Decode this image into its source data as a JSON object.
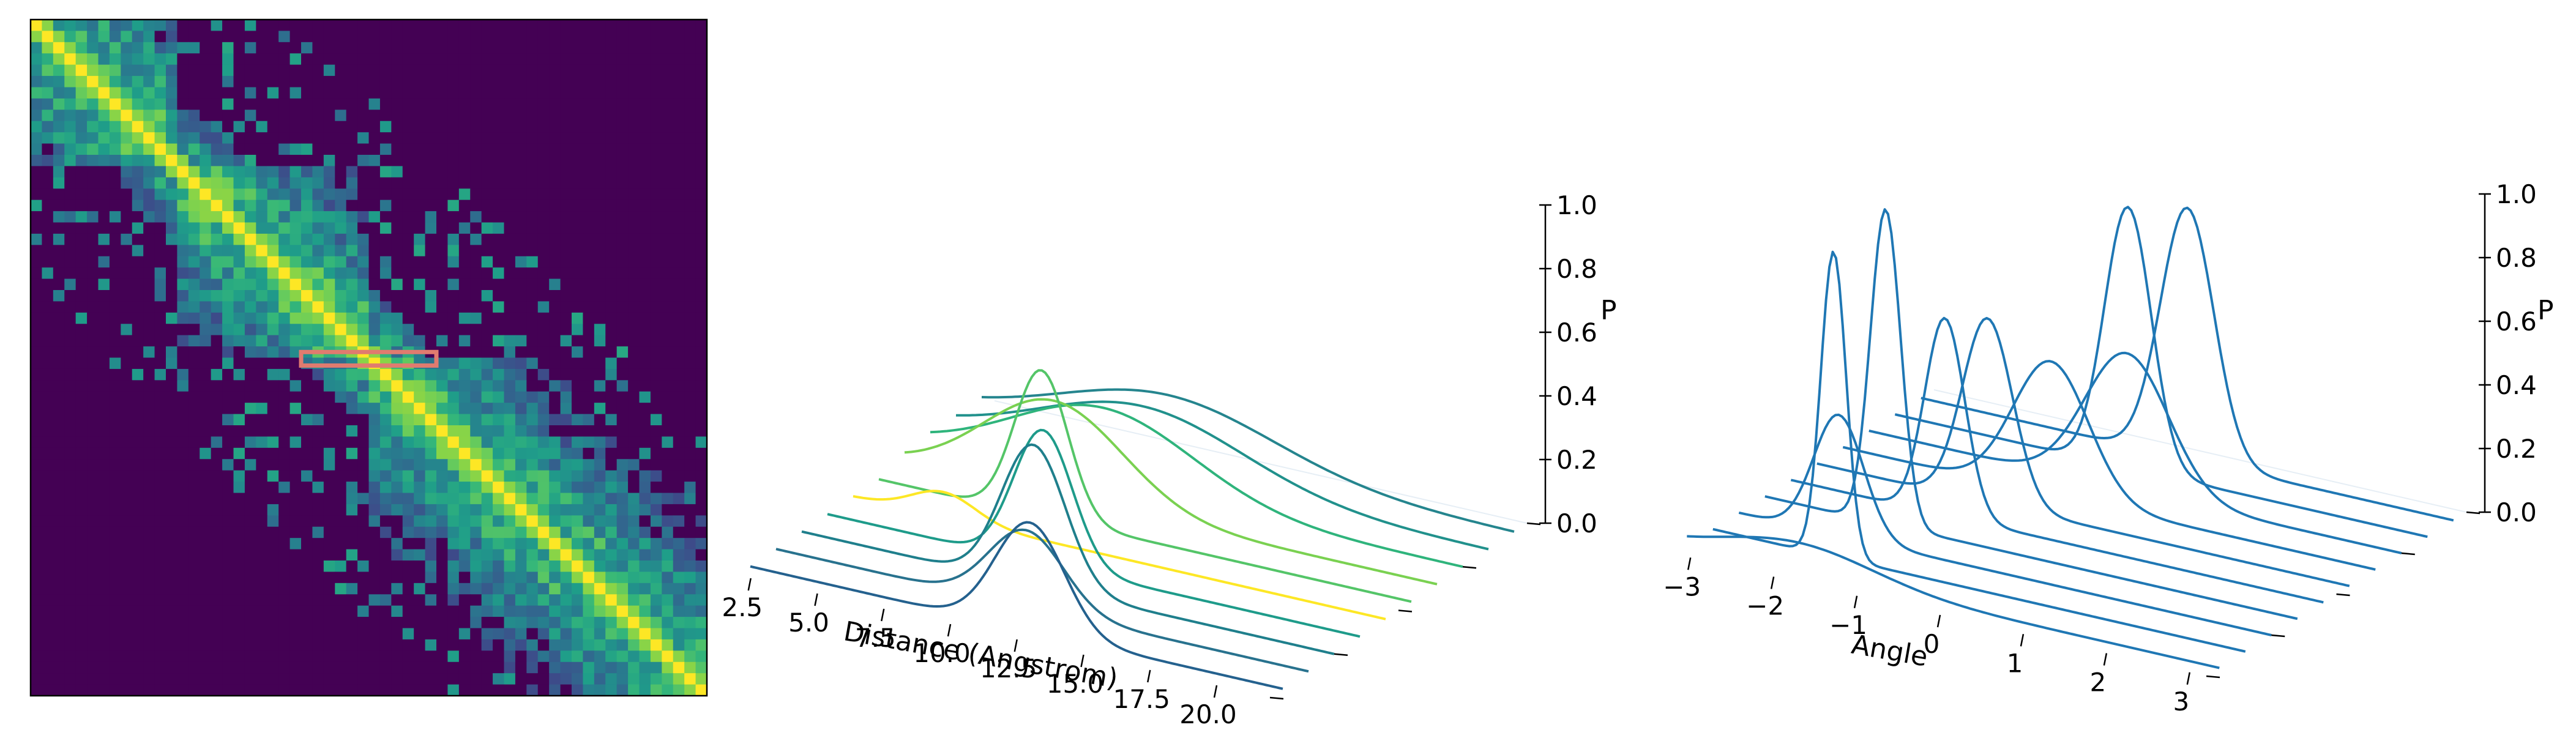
{
  "chart_data": [
    {
      "type": "heatmap",
      "colormap": "viridis",
      "highlight_color": "#e07b6f",
      "rows": 60,
      "cols": 60,
      "highlight": {
        "row": 30,
        "col_start": 24,
        "col_end": 36
      }
    },
    {
      "type": "line",
      "projection": "3d",
      "xlabel": "Distance (Angstrom)",
      "zlabel": "P",
      "x_ticks": [
        "2.5",
        "5.0",
        "7.5",
        "10.0",
        "12.5",
        "15.0",
        "17.5",
        "20.0"
      ],
      "z_ticks": [
        "0.0",
        "0.2",
        "0.4",
        "0.6",
        "0.8",
        "1.0"
      ],
      "xlim": [
        2,
        22
      ],
      "zlim": [
        0,
        1
      ],
      "series": [
        {
          "color": "#24618e",
          "peaks": [
            [
              12.5,
              0.34,
              1.3
            ]
          ]
        },
        {
          "color": "#28728e",
          "peaks": [
            [
              11.4,
              0.24,
              1.4
            ]
          ]
        },
        {
          "color": "#1f7f8c",
          "peaks": [
            [
              10.7,
              0.44,
              1.2
            ]
          ]
        },
        {
          "color": "#1e9b8a",
          "peaks": [
            [
              10.1,
              0.42,
              1.1
            ]
          ]
        },
        {
          "color": "#fde725",
          "peaks": [
            [
              5.4,
              0.08,
              1.2
            ]
          ]
        },
        {
          "color": "#54c568",
          "peaks": [
            [
              8.1,
              0.46,
              1.0
            ]
          ]
        },
        {
          "color": "#7ad151",
          "peaks": [
            [
              7.6,
              0.3,
              2.6
            ]
          ]
        },
        {
          "color": "#2fb47c",
          "peaks": [
            [
              8.5,
              0.24,
              3.4
            ]
          ]
        },
        {
          "color": "#21918c",
          "peaks": [
            [
              9.0,
              0.2,
              3.8
            ]
          ]
        },
        {
          "color": "#25858e",
          "peaks": [
            [
              9.0,
              0.18,
              4.0
            ]
          ]
        }
      ]
    },
    {
      "type": "line",
      "projection": "3d",
      "xlabel": "Angle",
      "zlabel": "P",
      "x_ticks": [
        "−3",
        "−2",
        "−1",
        "0",
        "1",
        "2",
        "3"
      ],
      "z_ticks": [
        "0.0",
        "0.2",
        "0.4",
        "0.6",
        "0.8",
        "1.0"
      ],
      "xlim": [
        -3.2,
        3.2
      ],
      "zlim": [
        0,
        1
      ],
      "color": "#1f77b4",
      "series": [
        {
          "peaks": [
            [
              -1.85,
              0.09,
              0.9
            ]
          ]
        },
        {
          "peaks": [
            [
              -1.75,
              0.96,
              0.15
            ]
          ]
        },
        {
          "peaks": [
            [
              -2.0,
              0.38,
              0.3
            ]
          ]
        },
        {
          "peaks": [
            [
              -1.75,
              0.99,
              0.18
            ]
          ]
        },
        {
          "peaks": [
            [
              -1.35,
              0.62,
              0.24
            ]
          ]
        },
        {
          "peaks": [
            [
              -1.15,
              0.58,
              0.3
            ]
          ]
        },
        {
          "peaks": [
            [
              -0.7,
              0.42,
              0.45
            ]
          ]
        },
        {
          "peaks": [
            [
              -0.1,
              0.43,
              0.5
            ]
          ]
        },
        {
          "peaks": [
            [
              -0.4,
              0.82,
              0.28
            ]
          ]
        },
        {
          "peaks": [
            [
              0.0,
              0.79,
              0.32
            ]
          ]
        }
      ]
    }
  ]
}
